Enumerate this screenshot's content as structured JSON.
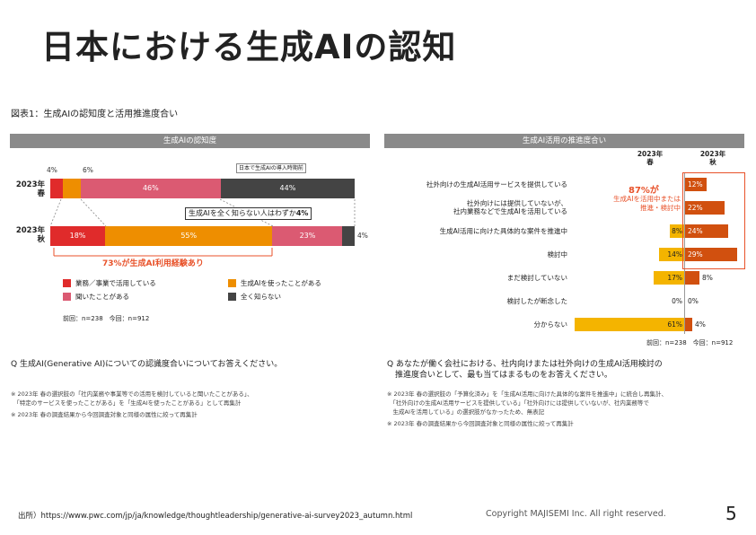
{
  "slide": {
    "title": "日本における生成AIの認知",
    "figure_title": "図表1：生成AIの認知度と活用推進度合い",
    "source": "出所）https://www.pwc.com/jp/ja/knowledge/thoughtleadership/generative-ai-survey2023_autumn.html",
    "copyright": "Copyright MAJISEMI Inc. All right reserved.",
    "page_number": "5"
  },
  "left_panel": {
    "header": "生成AIの認知度",
    "small_note": "日本で生成AIの導入時期前",
    "callout_unaware": "生成AIを全く知らない人はわずか",
    "callout_unaware_value": "4%",
    "callout_73": "73%が生成AI利用経験あり",
    "base": "前回：n=238　今回：n=912",
    "question": "Q 生成AI(Generative AI)についての認識度合いについてお答えください。",
    "notes": [
      "※ 2023年 春の選択肢の「社内業務や事業等での活用を検討していると聞いたことがある」、",
      "　「特定のサービスを使ったことがある」を「生成AIを使ったことがある」として再集計",
      "※ 2023年 春の調査結果から今回調査対象と同様の属性に絞って再集計"
    ],
    "legend": [
      "業務／事業で活用している",
      "生成AIを使ったことがある",
      "聞いたことがある",
      "全く知らない"
    ],
    "colors": [
      "#e02b2b",
      "#ee8e00",
      "#db5a72",
      "#444444"
    ],
    "rows": [
      {
        "year": "2023年",
        "season": "春",
        "values": [
          4,
          6,
          46,
          44
        ],
        "labels": [
          "4%",
          "6%",
          "46%",
          "44%"
        ]
      },
      {
        "year": "2023年",
        "season": "秋",
        "values": [
          18,
          55,
          23,
          4
        ],
        "labels": [
          "18%",
          "55%",
          "23%",
          "4%"
        ]
      }
    ]
  },
  "right_panel": {
    "header": "生成AI活用の推進度合い",
    "col_spring": "2023年\n春",
    "col_autumn": "2023年\n秋",
    "callout_87": "87%が",
    "callout_87_text": "生成AIを活用中または\n推進・検討中",
    "base": "前回：n=238　今回：n=912",
    "question_line1": "Q あなたが働く会社における、社内向けまたは社外向けの生成AI活用検討の",
    "question_line2": "　推進度合いとして、最も当てはまるものをお答えください。",
    "notes": [
      "※ 2023年 春の選択肢の「予算化済み」を「生成AI活用に向けた具体的な案件を推進中」に統合し再集計、",
      "　「社外向けの生成AI活用サービスを提供している」「社外向けには提供していないが、社内業務等で",
      "　生成AIを活用している」の選択肢がなかったため、無表記",
      "※ 2023年 春の調査結果から今回調査対象と同様の属性に絞って再集計"
    ],
    "spring_color": "#f4b400",
    "autumn_color": "#d1500f",
    "rows": [
      {
        "label": "社外向けの生成AI活用サービスを提供している",
        "spring": null,
        "spring_label": "",
        "autumn": 12,
        "autumn_label": "12%"
      },
      {
        "label": "社外向けには提供していないが、\n社内業務などで生成AIを活用している",
        "spring": null,
        "spring_label": "",
        "autumn": 22,
        "autumn_label": "22%"
      },
      {
        "label": "生成AI活用に向けた具体的な案件を推進中",
        "spring": 8,
        "spring_label": "8%",
        "autumn": 24,
        "autumn_label": "24%"
      },
      {
        "label": "検討中",
        "spring": 14,
        "spring_label": "14%",
        "autumn": 29,
        "autumn_label": "29%"
      },
      {
        "label": "まだ検討していない",
        "spring": 17,
        "spring_label": "17%",
        "autumn": 8,
        "autumn_label": "8%"
      },
      {
        "label": "検討したが断念した",
        "spring": 0,
        "spring_label": "0%",
        "autumn": 0,
        "autumn_label": "0%"
      },
      {
        "label": "分からない",
        "spring": 61,
        "spring_label": "61%",
        "autumn": 4,
        "autumn_label": "4%"
      }
    ]
  }
}
